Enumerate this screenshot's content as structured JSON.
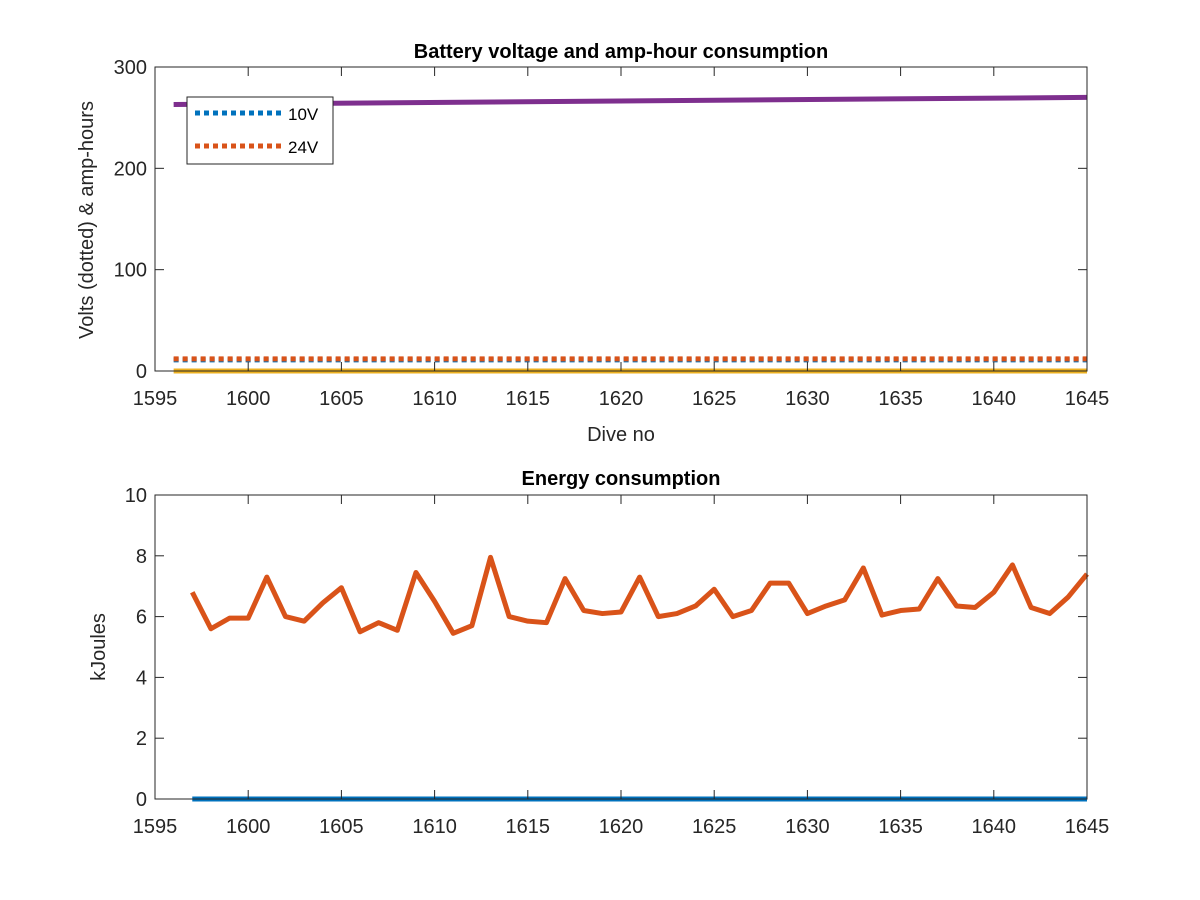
{
  "chart_data": [
    {
      "type": "line",
      "title": "Battery voltage and amp-hour consumption",
      "xlabel": "Dive no",
      "ylabel": "Volts (dotted) & amp-hours",
      "xlim": [
        1595,
        1645
      ],
      "ylim": [
        0,
        300
      ],
      "xticks": [
        "1595",
        "1600",
        "1605",
        "1610",
        "1615",
        "1620",
        "1625",
        "1630",
        "1635",
        "1640",
        "1645"
      ],
      "yticks": [
        "0",
        "100",
        "200",
        "300"
      ],
      "grid": false,
      "legend": {
        "location": "top-left",
        "entries": [
          "10V",
          "24V"
        ]
      },
      "series": [
        {
          "name": "10V",
          "style": "dotted",
          "color": "#0072BD",
          "x": [
            1596,
            1645
          ],
          "y": [
            11,
            11
          ]
        },
        {
          "name": "24V",
          "style": "dotted",
          "color": "#D95319",
          "x": [
            1596,
            1645
          ],
          "y": [
            12,
            12
          ]
        },
        {
          "style": "solid",
          "color": "#EDB120",
          "x": [
            1596,
            1645
          ],
          "y": [
            0,
            0
          ]
        },
        {
          "style": "solid",
          "color": "#7E2F8E",
          "x": [
            1596,
            1645
          ],
          "y": [
            263,
            270
          ]
        }
      ]
    },
    {
      "type": "line",
      "title": "Energy consumption",
      "xlabel": "",
      "ylabel": "kJoules",
      "xlim": [
        1595,
        1645
      ],
      "ylim": [
        0,
        10
      ],
      "xticks": [
        "1595",
        "1600",
        "1605",
        "1610",
        "1615",
        "1620",
        "1625",
        "1630",
        "1635",
        "1640",
        "1645"
      ],
      "yticks": [
        "0",
        "2",
        "4",
        "6",
        "8",
        "10"
      ],
      "grid": false,
      "series": [
        {
          "style": "solid",
          "color": "#0072BD",
          "x": [
            1597,
            1645
          ],
          "y": [
            0,
            0
          ]
        },
        {
          "style": "solid",
          "color": "#D95319",
          "x": [
            1597,
            1598,
            1599,
            1600,
            1601,
            1602,
            1603,
            1604,
            1605,
            1606,
            1607,
            1608,
            1609,
            1610,
            1611,
            1612,
            1613,
            1614,
            1615,
            1616,
            1617,
            1618,
            1619,
            1620,
            1621,
            1622,
            1623,
            1624,
            1625,
            1626,
            1627,
            1628,
            1629,
            1630,
            1631,
            1632,
            1633,
            1634,
            1635,
            1636,
            1637,
            1638,
            1639,
            1640,
            1641,
            1642,
            1643,
            1644,
            1645
          ],
          "y": [
            6.8,
            5.6,
            5.95,
            5.95,
            7.3,
            6.0,
            5.85,
            6.45,
            6.95,
            5.5,
            5.8,
            5.55,
            7.45,
            6.5,
            5.45,
            5.7,
            7.95,
            6.0,
            5.85,
            5.8,
            7.25,
            6.2,
            6.1,
            6.15,
            7.3,
            6.0,
            6.1,
            6.35,
            6.9,
            6.0,
            6.2,
            7.1,
            7.1,
            6.1,
            6.35,
            6.55,
            7.6,
            6.05,
            6.2,
            6.25,
            7.25,
            6.35,
            6.3,
            6.8,
            7.7,
            6.3,
            6.1,
            6.65,
            7.4
          ]
        }
      ]
    }
  ]
}
